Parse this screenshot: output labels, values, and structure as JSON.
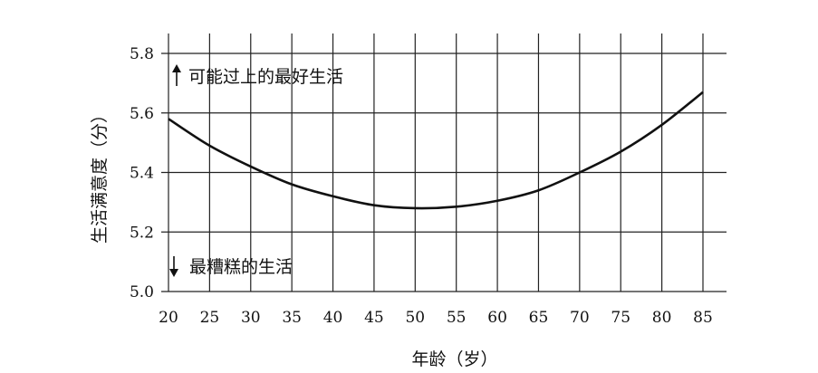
{
  "chart_data": {
    "type": "line",
    "xlabel": "年龄（岁）",
    "ylabel": "生活满意度（分）",
    "xlim": [
      20,
      85
    ],
    "ylim": [
      5.0,
      5.8
    ],
    "x_ticks": [
      "20",
      "25",
      "30",
      "35",
      "40",
      "45",
      "50",
      "55",
      "60",
      "65",
      "70",
      "75",
      "80",
      "85"
    ],
    "y_ticks": [
      "5.0",
      "5.2",
      "5.4",
      "5.6",
      "5.8"
    ],
    "grid": true,
    "series": [
      {
        "x": [
          20,
          25,
          30,
          35,
          40,
          45,
          50,
          55,
          60,
          65,
          70,
          75,
          80,
          85
        ],
        "y": [
          5.58,
          5.49,
          5.42,
          5.36,
          5.32,
          5.29,
          5.28,
          5.285,
          5.305,
          5.34,
          5.4,
          5.47,
          5.56,
          5.67
        ]
      }
    ],
    "annotations": [
      {
        "text": "可能过上的最好生活",
        "arrow": "up"
      },
      {
        "text": "最糟糕的生活",
        "arrow": "down"
      }
    ]
  }
}
